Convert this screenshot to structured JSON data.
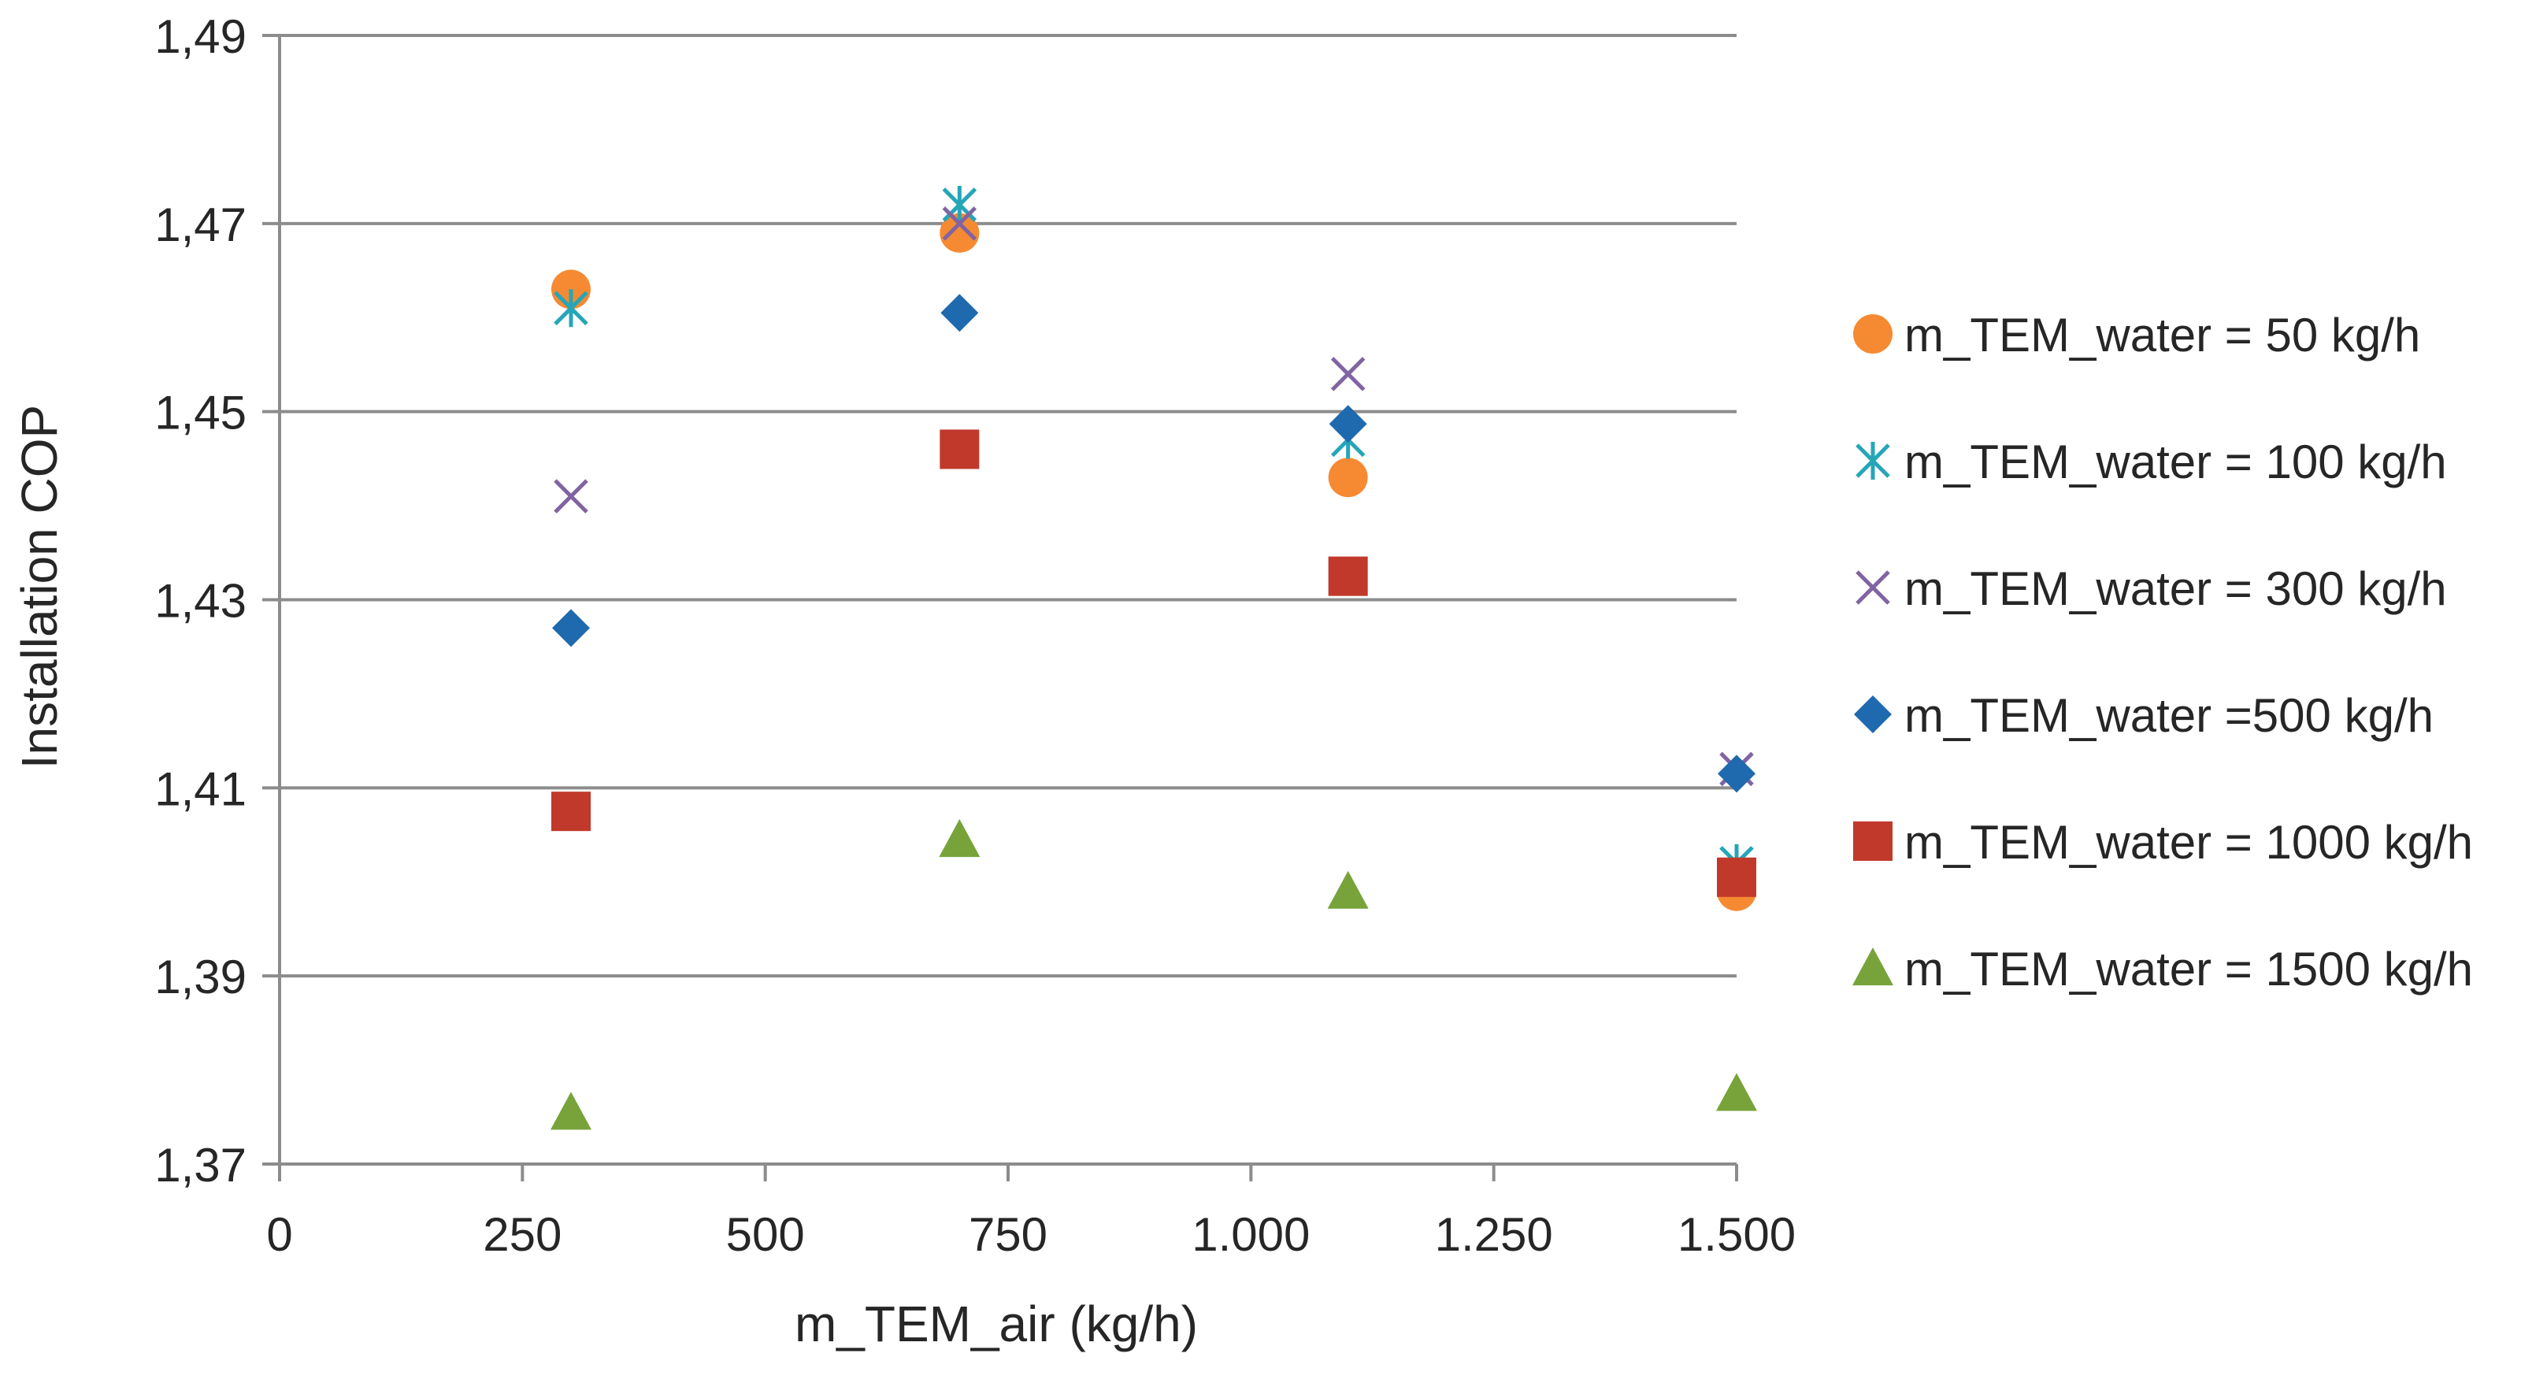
{
  "chart_data": {
    "type": "scatter",
    "title": "",
    "xlabel": "m_TEM_air (kg/h)",
    "ylabel": "Installation COP",
    "xlim": [
      0,
      1500
    ],
    "ylim": [
      1.37,
      1.49
    ],
    "x_ticks": [
      0,
      250,
      500,
      750,
      1000,
      1250,
      1500
    ],
    "x_tick_labels": [
      "0",
      "250",
      "500",
      "750",
      "1.000",
      "1.250",
      "1.500"
    ],
    "y_ticks": [
      1.37,
      1.39,
      1.41,
      1.43,
      1.45,
      1.47,
      1.49
    ],
    "y_tick_labels": [
      "1,37",
      "1,39",
      "1,41",
      "1,43",
      "1,45",
      "1,47",
      "1,49"
    ],
    "grid": "horizontal",
    "legend_position": "right",
    "series": [
      {
        "name": "m_TEM_water = 50 kg/h",
        "marker": "circle",
        "color": "#F58A32",
        "points": [
          [
            300,
            1.463
          ],
          [
            700,
            1.469
          ],
          [
            1100,
            1.443
          ],
          [
            1500,
            1.399
          ]
        ]
      },
      {
        "name": "m_TEM_water = 100 kg/h",
        "marker": "star",
        "color": "#25A6B8",
        "points": [
          [
            300,
            1.461
          ],
          [
            700,
            1.472
          ],
          [
            1100,
            1.447
          ],
          [
            1500,
            1.402
          ]
        ]
      },
      {
        "name": "m_TEM_water = 300 kg/h",
        "marker": "x",
        "color": "#8064A2",
        "points": [
          [
            300,
            1.441
          ],
          [
            700,
            1.47
          ],
          [
            1100,
            1.454
          ],
          [
            1500,
            1.412
          ]
        ]
      },
      {
        "name": "m_TEM_water =500 kg/h",
        "marker": "diamond",
        "color": "#1F6AAE",
        "points": [
          [
            300,
            1.427
          ],
          [
            700,
            1.4605
          ],
          [
            1100,
            1.4487
          ],
          [
            1500,
            1.4115
          ]
        ]
      },
      {
        "name": "m_TEM_water = 1000 kg/h",
        "marker": "square",
        "color": "#C0392B",
        "points": [
          [
            300,
            1.4075
          ],
          [
            700,
            1.446
          ],
          [
            1100,
            1.4325
          ],
          [
            1500,
            1.4005
          ]
        ]
      },
      {
        "name": "m_TEM_water = 1500 kg/h",
        "marker": "triangle",
        "color": "#77A33A",
        "points": [
          [
            300,
            1.3755
          ],
          [
            700,
            1.4045
          ],
          [
            1100,
            1.399
          ],
          [
            1500,
            1.3775
          ]
        ]
      }
    ]
  }
}
